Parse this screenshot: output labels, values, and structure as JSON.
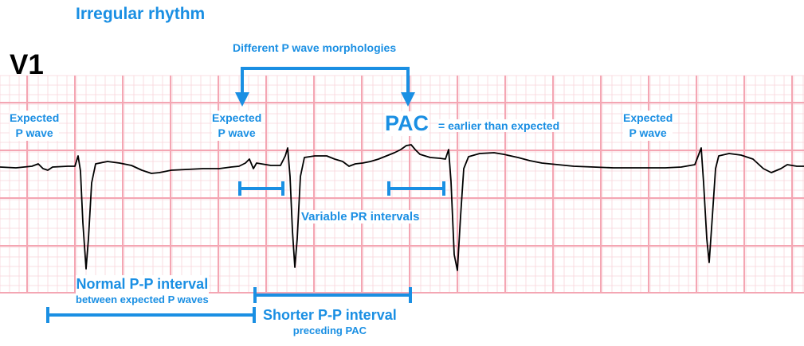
{
  "title": "Irregular rhythm",
  "lead": "V1",
  "morphologies_label": "Different P wave morphologies",
  "expected_p_wave": [
    "Expected",
    "P wave"
  ],
  "pac": {
    "abbr": "PAC",
    "note": "= earlier than expected"
  },
  "pr_label": "Variable PR intervals",
  "normal_pp": {
    "main": "Normal P-P interval",
    "sub": "between expected P waves"
  },
  "shorter_pp": {
    "main": "Shorter P-P interval",
    "sub": "preceding PAC"
  },
  "colors": {
    "annotation": "#1a8fe3",
    "grid": "#f4a6b3",
    "trace": "#000000",
    "background": "#ffffff"
  }
}
